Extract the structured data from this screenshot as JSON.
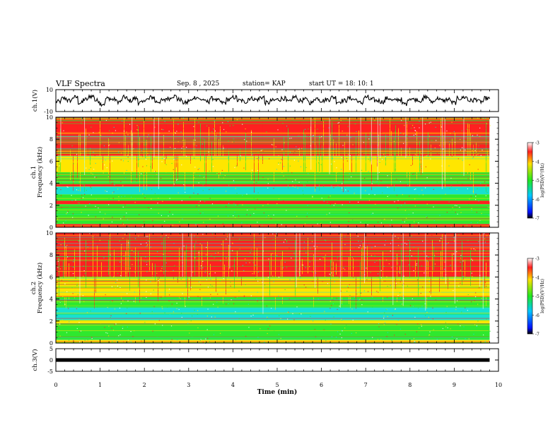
{
  "header": {
    "title": "VLF Spectra",
    "date": "Sep. 8 , 2025",
    "station": "station= KAP",
    "start": "start  UT =   18: 10: 1"
  },
  "chart_data": [
    {
      "type": "line",
      "panel": "ch1-waveform",
      "ylabel": "ch.1(V)",
      "ylim": [
        -10,
        10
      ],
      "yticks": [
        "10",
        "-10"
      ],
      "xlim": [
        0,
        10
      ],
      "series": [
        {
          "values_description_free": true,
          "y": [
            -1,
            2,
            0,
            3,
            -2,
            1,
            4,
            0,
            -3,
            2,
            1,
            -1,
            3,
            0,
            2,
            -2,
            1,
            3,
            -1,
            0,
            2,
            4,
            1,
            -2,
            0,
            3,
            1,
            -1,
            2,
            0,
            -2,
            1,
            3,
            0,
            -1,
            2,
            1,
            3,
            -2,
            0,
            1,
            2,
            -1,
            3,
            0,
            1,
            -2,
            2,
            0,
            1,
            3,
            -1,
            0,
            2,
            1,
            -2,
            3,
            1,
            0,
            -1,
            2,
            0,
            1,
            -3,
            2,
            1,
            0,
            3,
            -1,
            2,
            0,
            1,
            -2,
            2,
            3,
            0,
            1,
            -1,
            2,
            0
          ]
        }
      ]
    },
    {
      "type": "heatmap",
      "panel": "ch1-spectrogram",
      "ylabel": "ch.1\nFrequency (kHz)",
      "ylim": [
        0,
        10
      ],
      "yticks": [
        "0",
        "2",
        "4",
        "6",
        "8",
        "10"
      ],
      "xlim": [
        0,
        10
      ],
      "colorbar": {
        "label": "log(PSD)(V²/Hz)",
        "range": [
          -7,
          -3
        ],
        "ticks": [
          "-3",
          "-4",
          "-5",
          "-6",
          "-7"
        ]
      },
      "intensity_profile_log_psd": [
        {
          "f": [
            0,
            0.3
          ],
          "v": -3.6
        },
        {
          "f": [
            0.3,
            1.4
          ],
          "v": -4.9
        },
        {
          "f": [
            1.4,
            2.1
          ],
          "v": -4.4
        },
        {
          "f": [
            2.1,
            2.4
          ],
          "v": -3.4
        },
        {
          "f": [
            2.4,
            3.0
          ],
          "v": -4.8
        },
        {
          "f": [
            3.0,
            3.7
          ],
          "v": -5.2
        },
        {
          "f": [
            3.7,
            3.9
          ],
          "v": -3.5
        },
        {
          "f": [
            3.9,
            5.0
          ],
          "v": -5.0
        },
        {
          "f": [
            5.0,
            6.5
          ],
          "v": -4.0
        },
        {
          "f": [
            6.5,
            10.0
          ],
          "v": -3.4
        }
      ]
    },
    {
      "type": "heatmap",
      "panel": "ch2-spectrogram",
      "ylabel": "ch.2\nFrequency (kHz)",
      "ylim": [
        0,
        10
      ],
      "yticks": [
        "0",
        "2",
        "4",
        "6",
        "8",
        "10"
      ],
      "xlim": [
        0,
        10
      ],
      "colorbar": {
        "label": "log(PSD)(V²/Hz)",
        "range": [
          -7,
          -3
        ],
        "ticks": [
          "-3",
          "-4",
          "-5",
          "-6",
          "-7"
        ]
      },
      "intensity_profile_log_psd": [
        {
          "f": [
            0,
            0.3
          ],
          "v": -3.7
        },
        {
          "f": [
            0.3,
            1.8
          ],
          "v": -4.9
        },
        {
          "f": [
            1.8,
            2.1
          ],
          "v": -4.3
        },
        {
          "f": [
            2.1,
            3.2
          ],
          "v": -5.4
        },
        {
          "f": [
            3.2,
            4.2
          ],
          "v": -4.6
        },
        {
          "f": [
            4.2,
            6.0
          ],
          "v": -3.9
        },
        {
          "f": [
            6.0,
            10.0
          ],
          "v": -3.4
        }
      ]
    },
    {
      "type": "line",
      "panel": "ch3-waveform",
      "ylabel": "ch.3(V)",
      "ylim": [
        -5,
        5
      ],
      "yticks": [
        "5",
        "0",
        "-5"
      ],
      "xlim": [
        0,
        10
      ],
      "series": [
        {
          "constant_band": [
            -0.8,
            0.8
          ]
        }
      ]
    }
  ],
  "xaxis": {
    "label": "Time (min)",
    "ticks": [
      "0",
      "1",
      "2",
      "3",
      "4",
      "5",
      "6",
      "7",
      "8",
      "9",
      "10"
    ],
    "data_end_min": 9.8
  },
  "colors": {
    "red": "#ff2020",
    "yellow": "#ffe600",
    "green": "#2ee82e",
    "cyan": "#17e0d0",
    "blue": "#1030ff",
    "black": "#000000"
  }
}
